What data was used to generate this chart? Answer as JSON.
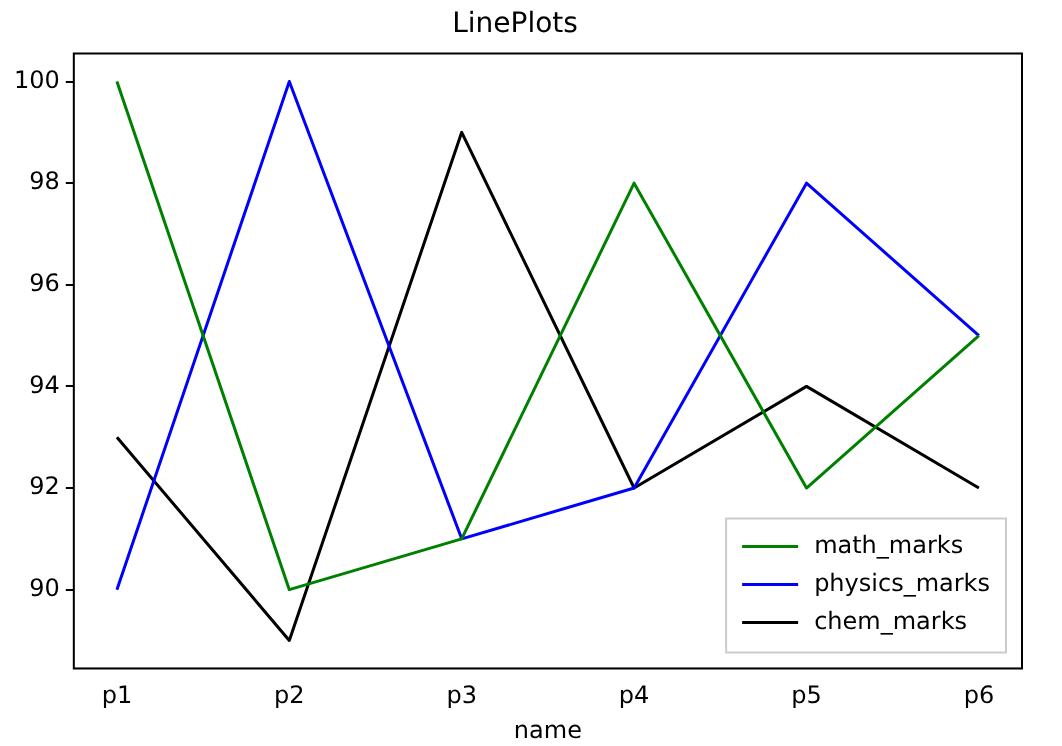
{
  "chart_data": {
    "type": "line",
    "title": "LinePlots",
    "xlabel": "name",
    "categories": [
      "p1",
      "p2",
      "p3",
      "p4",
      "p5",
      "p6"
    ],
    "series": [
      {
        "name": "math_marks",
        "color": "#008000",
        "values": [
          100,
          90,
          91,
          98,
          92,
          95
        ]
      },
      {
        "name": "physics_marks",
        "color": "#0000ff",
        "values": [
          90,
          100,
          91,
          92,
          98,
          95
        ]
      },
      {
        "name": "chem_marks",
        "color": "#000000",
        "values": [
          93,
          89,
          99,
          92,
          94,
          92
        ]
      }
    ],
    "ylim": [
      88.45,
      100.55
    ],
    "yticks": [
      90,
      92,
      94,
      96,
      98,
      100
    ],
    "grid": false,
    "legend": "bottom right",
    "marker": "none",
    "line_style": "solid"
  }
}
